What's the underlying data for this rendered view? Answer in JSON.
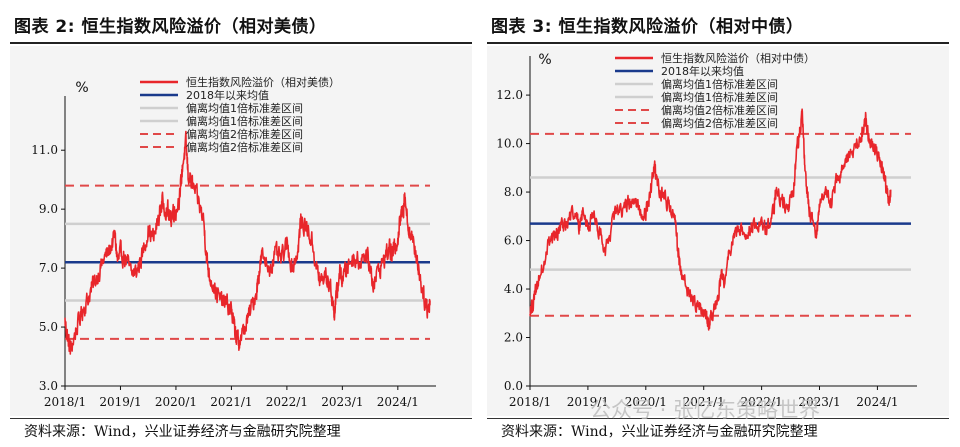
{
  "page": {
    "source_left": "资料来源：Wind，兴业证券经济与金融研究院整理",
    "source_right": "资料来源：Wind，兴业证券经济与金融研究院整理",
    "watermark": "公众号 · 张忆东策略世界"
  },
  "colors": {
    "series": "#e8262b",
    "mean": "#1a3a8c",
    "band1": "#cfcfcf",
    "band2": "#e04848",
    "background": "#f4f4f4"
  },
  "chart_data": [
    {
      "id": "left",
      "type": "line",
      "title": "图表 2:  恒生指数风险溢价（相对美债）",
      "ylabel": "%",
      "xlabel": "",
      "ylim": [
        3.0,
        12.5
      ],
      "yticks": [
        3.0,
        5.0,
        7.0,
        9.0,
        11.0
      ],
      "ytick_labels": [
        "3.0",
        "5.0",
        "7.0",
        "9.0",
        "11.0"
      ],
      "x_range": [
        2018.0,
        2024.58
      ],
      "xticks": [
        2018.0,
        2019.0,
        2020.0,
        2021.0,
        2022.0,
        2023.0,
        2024.0
      ],
      "xtick_labels": [
        "2018/1",
        "2019/1",
        "2020/1",
        "2021/1",
        "2022/1",
        "2023/1",
        "2024/1"
      ],
      "legend": [
        {
          "label": "恒生指数风险溢价（相对美债）",
          "style": "series"
        },
        {
          "label": "2018年以来均值",
          "style": "mean"
        },
        {
          "label": "偏离均值1倍标准差区间",
          "style": "band1"
        },
        {
          "label": "偏离均值1倍标准差区间",
          "style": "band1"
        },
        {
          "label": "偏离均值2倍标准差区间",
          "style": "band2"
        },
        {
          "label": "偏离均值2倍标准差区间",
          "style": "band2"
        }
      ],
      "reference_lines": {
        "mean": 7.2,
        "band1": [
          5.9,
          8.5
        ],
        "band2": [
          4.6,
          9.8
        ]
      },
      "series": {
        "name": "恒生指数风险溢价（相对美债）",
        "anchors": [
          [
            2018.0,
            5.2
          ],
          [
            2018.05,
            4.6
          ],
          [
            2018.1,
            4.2
          ],
          [
            2018.2,
            4.9
          ],
          [
            2018.3,
            5.5
          ],
          [
            2018.4,
            5.9
          ],
          [
            2018.5,
            6.4
          ],
          [
            2018.6,
            6.8
          ],
          [
            2018.7,
            7.3
          ],
          [
            2018.8,
            7.6
          ],
          [
            2018.9,
            8.1
          ],
          [
            2018.95,
            7.2
          ],
          [
            2019.0,
            7.5
          ],
          [
            2019.1,
            7.3
          ],
          [
            2019.2,
            6.8
          ],
          [
            2019.3,
            6.9
          ],
          [
            2019.4,
            7.5
          ],
          [
            2019.5,
            8.3
          ],
          [
            2019.6,
            8.0
          ],
          [
            2019.7,
            8.8
          ],
          [
            2019.75,
            9.2
          ],
          [
            2019.85,
            9.0
          ],
          [
            2019.9,
            8.6
          ],
          [
            2019.95,
            9.0
          ],
          [
            2020.0,
            8.9
          ],
          [
            2020.08,
            9.6
          ],
          [
            2020.12,
            10.5
          ],
          [
            2020.18,
            11.2
          ],
          [
            2020.22,
            10.2
          ],
          [
            2020.3,
            9.8
          ],
          [
            2020.4,
            9.3
          ],
          [
            2020.5,
            8.6
          ],
          [
            2020.55,
            7.4
          ],
          [
            2020.6,
            6.8
          ],
          [
            2020.7,
            6.3
          ],
          [
            2020.8,
            5.9
          ],
          [
            2020.9,
            5.8
          ],
          [
            2021.0,
            5.6
          ],
          [
            2021.05,
            5.0
          ],
          [
            2021.1,
            4.6
          ],
          [
            2021.15,
            4.5
          ],
          [
            2021.25,
            5.0
          ],
          [
            2021.35,
            5.6
          ],
          [
            2021.45,
            6.2
          ],
          [
            2021.5,
            6.9
          ],
          [
            2021.55,
            7.4
          ],
          [
            2021.7,
            7.0
          ],
          [
            2021.8,
            7.5
          ],
          [
            2021.9,
            7.3
          ],
          [
            2022.0,
            7.8
          ],
          [
            2022.1,
            7.0
          ],
          [
            2022.2,
            7.6
          ],
          [
            2022.25,
            8.6
          ],
          [
            2022.35,
            8.4
          ],
          [
            2022.45,
            7.9
          ],
          [
            2022.55,
            6.9
          ],
          [
            2022.6,
            6.5
          ],
          [
            2022.7,
            6.8
          ],
          [
            2022.8,
            6.2
          ],
          [
            2022.85,
            5.5
          ],
          [
            2022.9,
            6.1
          ],
          [
            2022.95,
            6.9
          ],
          [
            2023.0,
            6.6
          ],
          [
            2023.1,
            7.1
          ],
          [
            2023.2,
            7.4
          ],
          [
            2023.3,
            7.2
          ],
          [
            2023.4,
            7.5
          ],
          [
            2023.5,
            7.1
          ],
          [
            2023.55,
            6.5
          ],
          [
            2023.65,
            6.9
          ],
          [
            2023.75,
            7.3
          ],
          [
            2023.85,
            7.7
          ],
          [
            2023.9,
            7.4
          ],
          [
            2023.95,
            7.8
          ],
          [
            2024.0,
            8.0
          ],
          [
            2024.05,
            8.7
          ],
          [
            2024.1,
            9.0
          ],
          [
            2024.12,
            9.6
          ],
          [
            2024.18,
            8.5
          ],
          [
            2024.25,
            8.0
          ],
          [
            2024.35,
            7.3
          ],
          [
            2024.42,
            6.5
          ],
          [
            2024.5,
            5.8
          ],
          [
            2024.55,
            5.6
          ],
          [
            2024.58,
            5.9
          ]
        ]
      }
    },
    {
      "id": "right",
      "type": "line",
      "title": "图表 3:  恒生指数风险溢价（相对中债）",
      "ylabel": "%",
      "xlabel": "",
      "ylim": [
        0.0,
        13.2
      ],
      "yticks": [
        0.0,
        2.0,
        4.0,
        6.0,
        8.0,
        10.0,
        12.0
      ],
      "ytick_labels": [
        "0.0",
        "2.0",
        "4.0",
        "6.0",
        "8.0",
        "10.0",
        "12.0"
      ],
      "x_range": [
        2018.0,
        2024.58
      ],
      "xticks": [
        2018.0,
        2019.0,
        2020.0,
        2021.0,
        2022.0,
        2023.0,
        2024.0
      ],
      "xtick_labels": [
        "2018/1",
        "2019/1",
        "2020/1",
        "2021/1",
        "2022/1",
        "2023/1",
        "2024/1"
      ],
      "legend": [
        {
          "label": "恒生指数风险溢价（相对中债）",
          "style": "series"
        },
        {
          "label": "2018年以来均值",
          "style": "mean"
        },
        {
          "label": "偏离均值1倍标准差区间",
          "style": "band1"
        },
        {
          "label": "偏离均值1倍标准差区间",
          "style": "band1"
        },
        {
          "label": "偏离均值2倍标准差区间",
          "style": "band2"
        },
        {
          "label": "偏离均值2倍标准差区间",
          "style": "band2"
        }
      ],
      "reference_lines": {
        "mean": 6.7,
        "band1": [
          4.8,
          8.6
        ],
        "band2": [
          2.9,
          10.4
        ]
      },
      "series": {
        "name": "恒生指数风险溢价（相对中债）",
        "anchors": [
          [
            2018.0,
            3.0
          ],
          [
            2018.05,
            3.4
          ],
          [
            2018.1,
            3.9
          ],
          [
            2018.2,
            4.8
          ],
          [
            2018.3,
            5.8
          ],
          [
            2018.4,
            6.1
          ],
          [
            2018.5,
            6.5
          ],
          [
            2018.6,
            6.6
          ],
          [
            2018.7,
            6.9
          ],
          [
            2018.8,
            7.2
          ],
          [
            2018.85,
            6.6
          ],
          [
            2018.9,
            7.1
          ],
          [
            2019.0,
            6.6
          ],
          [
            2019.1,
            7.1
          ],
          [
            2019.2,
            6.4
          ],
          [
            2019.3,
            5.6
          ],
          [
            2019.4,
            6.5
          ],
          [
            2019.5,
            7.3
          ],
          [
            2019.6,
            7.1
          ],
          [
            2019.7,
            7.6
          ],
          [
            2019.8,
            7.5
          ],
          [
            2019.9,
            7.3
          ],
          [
            2020.0,
            7.1
          ],
          [
            2020.05,
            7.6
          ],
          [
            2020.1,
            8.3
          ],
          [
            2020.15,
            9.2
          ],
          [
            2020.2,
            8.2
          ],
          [
            2020.3,
            7.9
          ],
          [
            2020.4,
            7.4
          ],
          [
            2020.5,
            6.9
          ],
          [
            2020.55,
            5.7
          ],
          [
            2020.6,
            4.8
          ],
          [
            2020.7,
            4.1
          ],
          [
            2020.8,
            3.6
          ],
          [
            2020.9,
            3.3
          ],
          [
            2021.0,
            3.1
          ],
          [
            2021.05,
            2.8
          ],
          [
            2021.1,
            2.5
          ],
          [
            2021.15,
            3.0
          ],
          [
            2021.25,
            3.5
          ],
          [
            2021.3,
            4.6
          ],
          [
            2021.35,
            4.2
          ],
          [
            2021.45,
            5.6
          ],
          [
            2021.55,
            6.3
          ],
          [
            2021.65,
            6.5
          ],
          [
            2021.75,
            6.3
          ],
          [
            2021.85,
            6.6
          ],
          [
            2022.0,
            6.8
          ],
          [
            2022.1,
            6.4
          ],
          [
            2022.2,
            7.1
          ],
          [
            2022.25,
            8.1
          ],
          [
            2022.35,
            7.6
          ],
          [
            2022.45,
            7.3
          ],
          [
            2022.55,
            8.1
          ],
          [
            2022.6,
            9.5
          ],
          [
            2022.65,
            10.4
          ],
          [
            2022.7,
            11.2
          ],
          [
            2022.75,
            8.9
          ],
          [
            2022.82,
            7.3
          ],
          [
            2022.88,
            6.8
          ],
          [
            2022.95,
            6.2
          ],
          [
            2023.0,
            7.3
          ],
          [
            2023.1,
            8.1
          ],
          [
            2023.2,
            7.6
          ],
          [
            2023.3,
            8.6
          ],
          [
            2023.4,
            8.9
          ],
          [
            2023.5,
            9.5
          ],
          [
            2023.6,
            9.7
          ],
          [
            2023.7,
            10.2
          ],
          [
            2023.75,
            10.5
          ],
          [
            2023.8,
            11.1
          ],
          [
            2023.85,
            10.2
          ],
          [
            2023.95,
            9.9
          ],
          [
            2024.05,
            9.3
          ],
          [
            2024.1,
            8.9
          ],
          [
            2024.15,
            8.2
          ],
          [
            2024.2,
            7.6
          ],
          [
            2024.23,
            8.1
          ]
        ]
      }
    }
  ]
}
